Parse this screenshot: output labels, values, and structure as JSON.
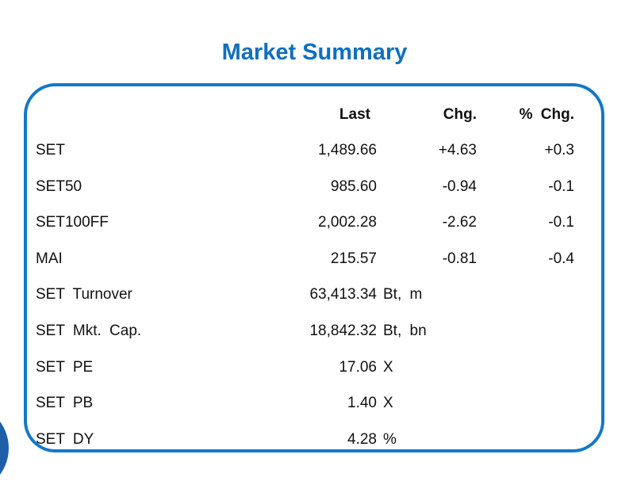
{
  "title": "Market Summary",
  "colors": {
    "accent_blue": "#1478c8",
    "title_blue": "#0e6fc1",
    "circle_blue": "#1d5fa9",
    "text": "#111111"
  },
  "table": {
    "headers": {
      "last": "Last",
      "chg": "Chg.",
      "pchg": "% Chg."
    },
    "rows": [
      {
        "label": "SET",
        "last": "1,489.66",
        "unit": "",
        "chg": "+4.63",
        "pchg": "+0.3"
      },
      {
        "label": "SET50",
        "last": "985.60",
        "unit": "",
        "chg": "-0.94",
        "pchg": "-0.1"
      },
      {
        "label": "SET100FF",
        "last": "2,002.28",
        "unit": "",
        "chg": "-2.62",
        "pchg": "-0.1"
      },
      {
        "label": "MAI",
        "last": "215.57",
        "unit": "",
        "chg": "-0.81",
        "pchg": "-0.4"
      },
      {
        "label": "SET Turnover",
        "last": "63,413.34",
        "unit": "Bt, m",
        "chg": "",
        "pchg": ""
      },
      {
        "label": "SET Mkt. Cap.",
        "last": "18,842.32",
        "unit": "Bt, bn",
        "chg": "",
        "pchg": ""
      },
      {
        "label": "SET PE",
        "last": "17.06",
        "unit": "X",
        "chg": "",
        "pchg": ""
      },
      {
        "label": "SET PB",
        "last": "1.40",
        "unit": "X",
        "chg": "",
        "pchg": ""
      },
      {
        "label": "SET DY",
        "last": "4.28",
        "unit": "%",
        "chg": "",
        "pchg": ""
      }
    ]
  }
}
